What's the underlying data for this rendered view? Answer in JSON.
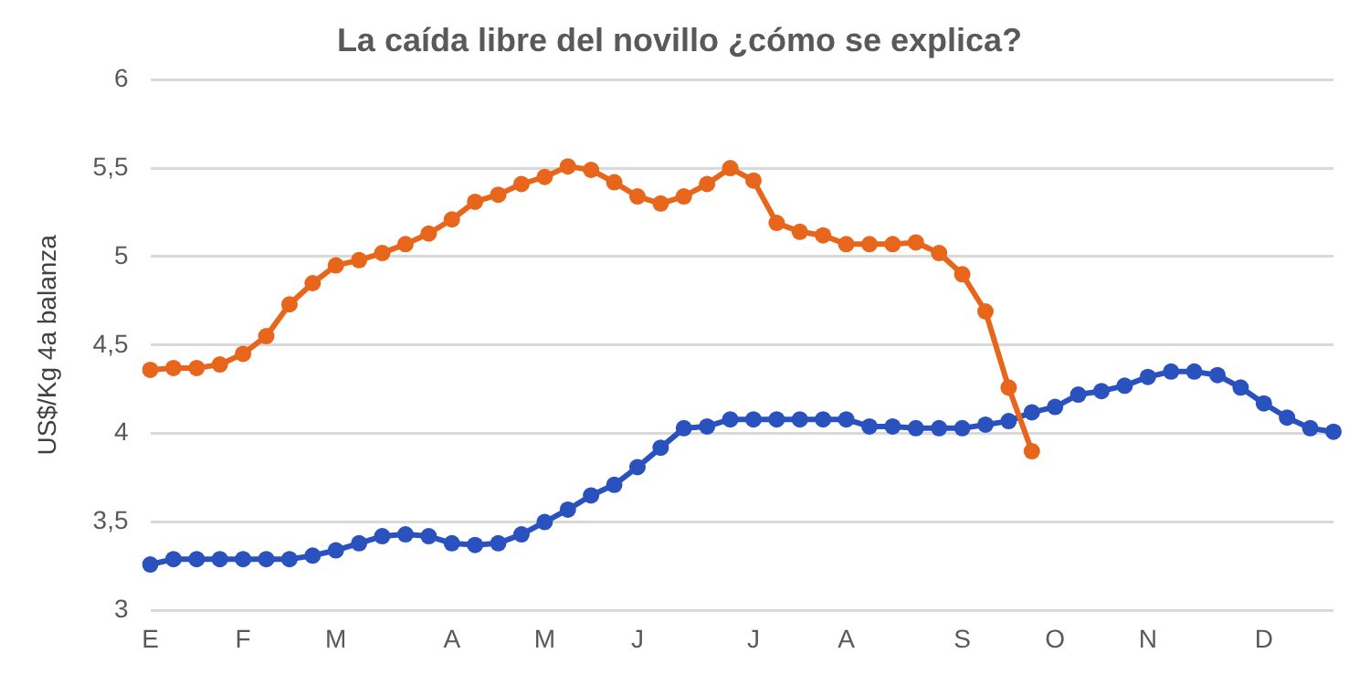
{
  "chart_data": {
    "type": "line",
    "title": "La caída libre del novillo ¿cómo se explica?",
    "ylabel": "US$/Kg 4a balanza",
    "categories": [
      "E",
      null,
      null,
      null,
      "F",
      null,
      null,
      null,
      "M",
      null,
      null,
      null,
      null,
      "A",
      null,
      null,
      null,
      "M",
      null,
      null,
      null,
      "J",
      null,
      null,
      null,
      null,
      "J",
      null,
      null,
      null,
      "A",
      null,
      null,
      null,
      null,
      "S",
      null,
      null,
      null,
      "O",
      null,
      null,
      null,
      "N",
      null,
      null,
      null,
      null,
      "D",
      null,
      null,
      null
    ],
    "series": [
      {
        "color": "#e8661c",
        "values": [
          4.36,
          4.37,
          4.37,
          4.39,
          4.45,
          4.55,
          4.73,
          4.85,
          4.95,
          4.98,
          5.02,
          5.07,
          5.13,
          5.21,
          5.31,
          5.35,
          5.41,
          5.45,
          5.51,
          5.49,
          5.42,
          5.34,
          5.3,
          5.34,
          5.41,
          5.5,
          5.43,
          5.19,
          5.14,
          5.12,
          5.07,
          5.07,
          5.07,
          5.08,
          5.02,
          4.9,
          4.69,
          4.26,
          3.9,
          null,
          null,
          null,
          null,
          null,
          null,
          null,
          null,
          null,
          null,
          null,
          null,
          null
        ]
      },
      {
        "color": "#2a52be",
        "values": [
          3.26,
          3.29,
          3.29,
          3.29,
          3.29,
          3.29,
          3.29,
          3.31,
          3.34,
          3.38,
          3.42,
          3.43,
          3.42,
          3.38,
          3.37,
          3.38,
          3.43,
          3.5,
          3.57,
          3.65,
          3.71,
          3.81,
          3.92,
          4.03,
          4.04,
          4.08,
          4.08,
          4.08,
          4.08,
          4.08,
          4.08,
          4.04,
          4.04,
          4.03,
          4.03,
          4.03,
          4.05,
          4.07,
          4.12,
          4.15,
          4.22,
          4.24,
          4.27,
          4.32,
          4.35,
          4.35,
          4.33,
          4.26,
          4.17,
          4.09,
          4.03,
          4.01
        ]
      }
    ],
    "ylim": [
      3,
      6
    ],
    "yticks": [
      3,
      {
        "value": 3.5,
        "label": "3,5"
      },
      4,
      {
        "value": 4.5,
        "label": "4,5"
      },
      5,
      {
        "value": 5.5,
        "label": "5,5"
      },
      6
    ],
    "grid": "y",
    "legend": false,
    "marker": "circle",
    "line_style": "solid"
  }
}
